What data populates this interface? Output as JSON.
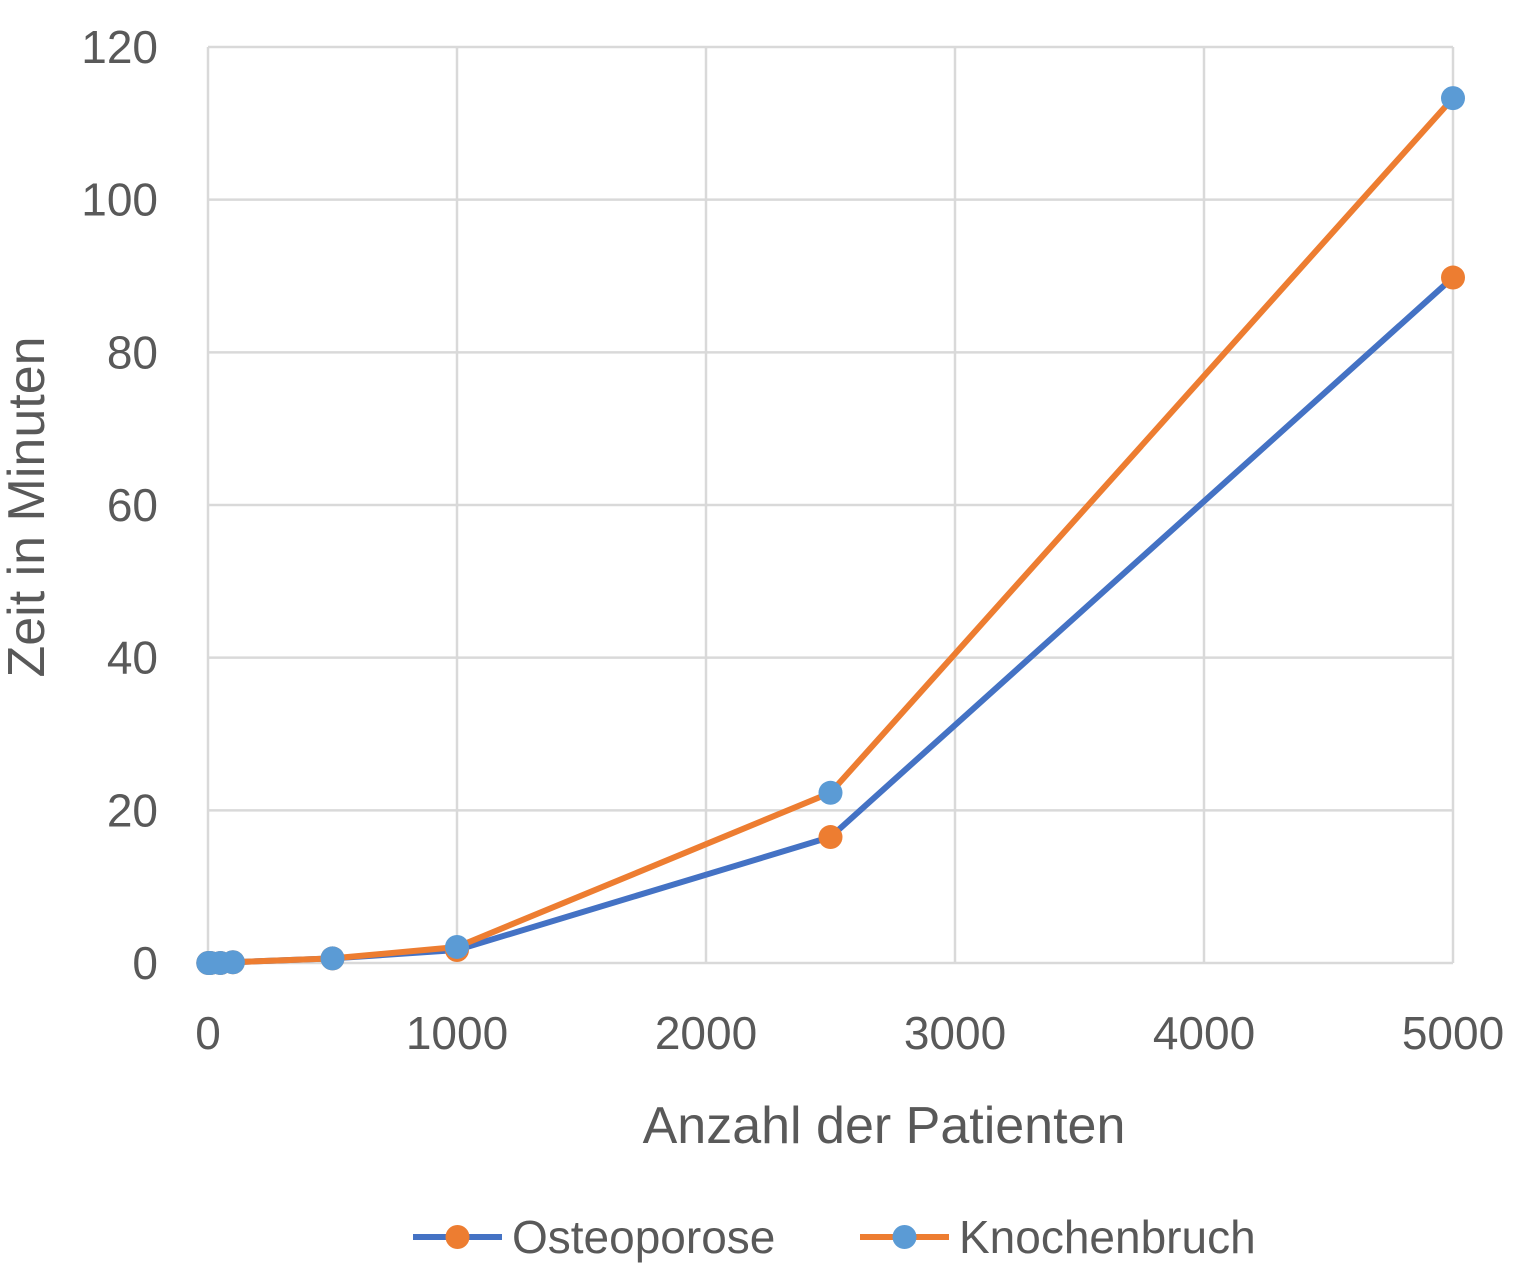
{
  "chart_data": {
    "type": "line",
    "title": "",
    "xlabel": "Anzahl der Patienten",
    "ylabel": "Zeit in Minuten",
    "xlim": [
      0,
      5000
    ],
    "ylim": [
      0,
      120
    ],
    "xticks": [
      0,
      1000,
      2000,
      3000,
      4000,
      5000
    ],
    "yticks": [
      0,
      20,
      40,
      60,
      80,
      100,
      120
    ],
    "x_tick_labels": [
      "0",
      "1000",
      "2000",
      "3000",
      "4000",
      "5000"
    ],
    "y_tick_labels": [
      "0",
      "20",
      "40",
      "60",
      "80",
      "100",
      "120"
    ],
    "grid": true,
    "legend_position": "bottom",
    "series": [
      {
        "name": "Osteoporose",
        "line_color": "#4472C4",
        "marker_color": "#ED7D31",
        "x": [
          1,
          10,
          50,
          100,
          500,
          1000,
          2500,
          5000
        ],
        "y": [
          0,
          0,
          0,
          0.1,
          0.6,
          1.7,
          16.5,
          89.8
        ]
      },
      {
        "name": "Knochenbruch",
        "line_color": "#ED7D31",
        "marker_color": "#5B9BD5",
        "x": [
          1,
          10,
          50,
          100,
          500,
          1000,
          2500,
          5000
        ],
        "y": [
          0,
          0,
          0,
          0.1,
          0.6,
          2.1,
          22.3,
          113.3
        ]
      }
    ]
  }
}
